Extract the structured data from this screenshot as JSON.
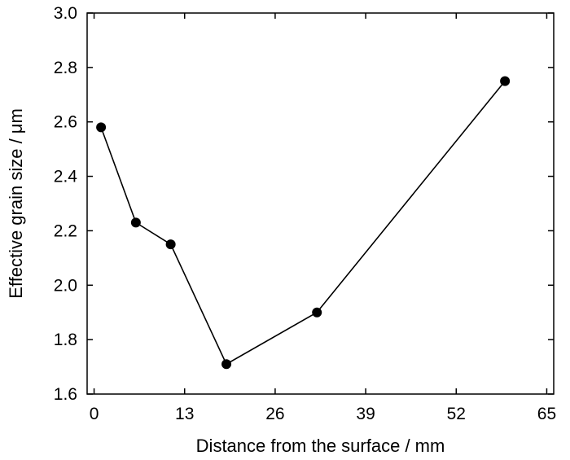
{
  "chart_data": {
    "type": "line",
    "title": "",
    "xlabel": "Distance from the surface / mm",
    "ylabel": "Effective grain size / μm",
    "xlim": [
      -1,
      66
    ],
    "ylim": [
      1.6,
      3.0
    ],
    "xticks": [
      0,
      13,
      26,
      39,
      52,
      65
    ],
    "xtick_labels": [
      "0",
      "13",
      "26",
      "39",
      "52",
      "65"
    ],
    "yticks": [
      1.6,
      1.8,
      2.0,
      2.2,
      2.4,
      2.6,
      2.8,
      3.0
    ],
    "ytick_labels": [
      "1.6",
      "1.8",
      "2.0",
      "2.2",
      "2.4",
      "2.6",
      "2.8",
      "3.0"
    ],
    "grid": false,
    "series": [
      {
        "x": [
          1,
          6,
          11,
          19,
          32,
          59
        ],
        "y": [
          2.58,
          2.23,
          2.15,
          1.71,
          1.9,
          2.75
        ],
        "marker": "filled-circle",
        "color": "#000000"
      }
    ]
  }
}
